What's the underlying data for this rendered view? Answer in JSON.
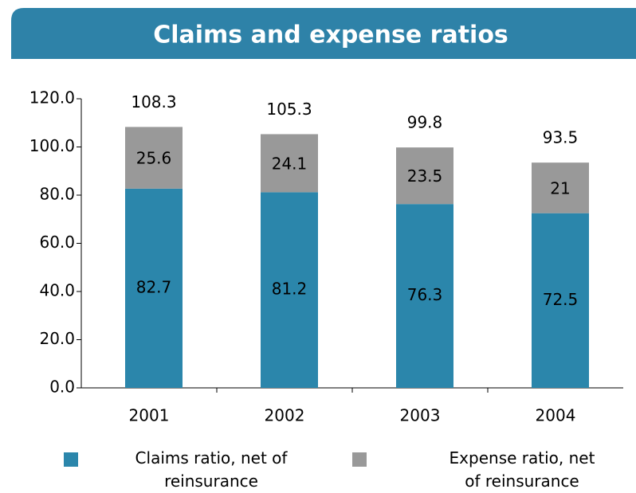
{
  "chart_data": {
    "type": "stacked_bar",
    "title": "Claims and expense ratios",
    "categories": [
      "2001",
      "2002",
      "2003",
      "2004"
    ],
    "series": [
      {
        "name": "Claims ratio, net of reinsurance",
        "color": "#2b86ab",
        "values": [
          82.7,
          81.2,
          76.3,
          72.5
        ]
      },
      {
        "name": "Expense ratio, net of reinsurance",
        "color": "#999999",
        "values": [
          25.6,
          24.1,
          23.5,
          21
        ]
      }
    ],
    "totals": [
      108.3,
      105.3,
      99.8,
      93.5
    ],
    "ylim": [
      0,
      120
    ],
    "yticks": [
      {
        "value": 0,
        "label": "0.0"
      },
      {
        "value": 20,
        "label": "20.0"
      },
      {
        "value": 40,
        "label": "40.0"
      },
      {
        "value": 60,
        "label": "60.0"
      },
      {
        "value": 80,
        "label": "80.0"
      },
      {
        "value": 100,
        "label": "100.0"
      },
      {
        "value": 120,
        "label": "120.0"
      }
    ],
    "grid": false
  }
}
